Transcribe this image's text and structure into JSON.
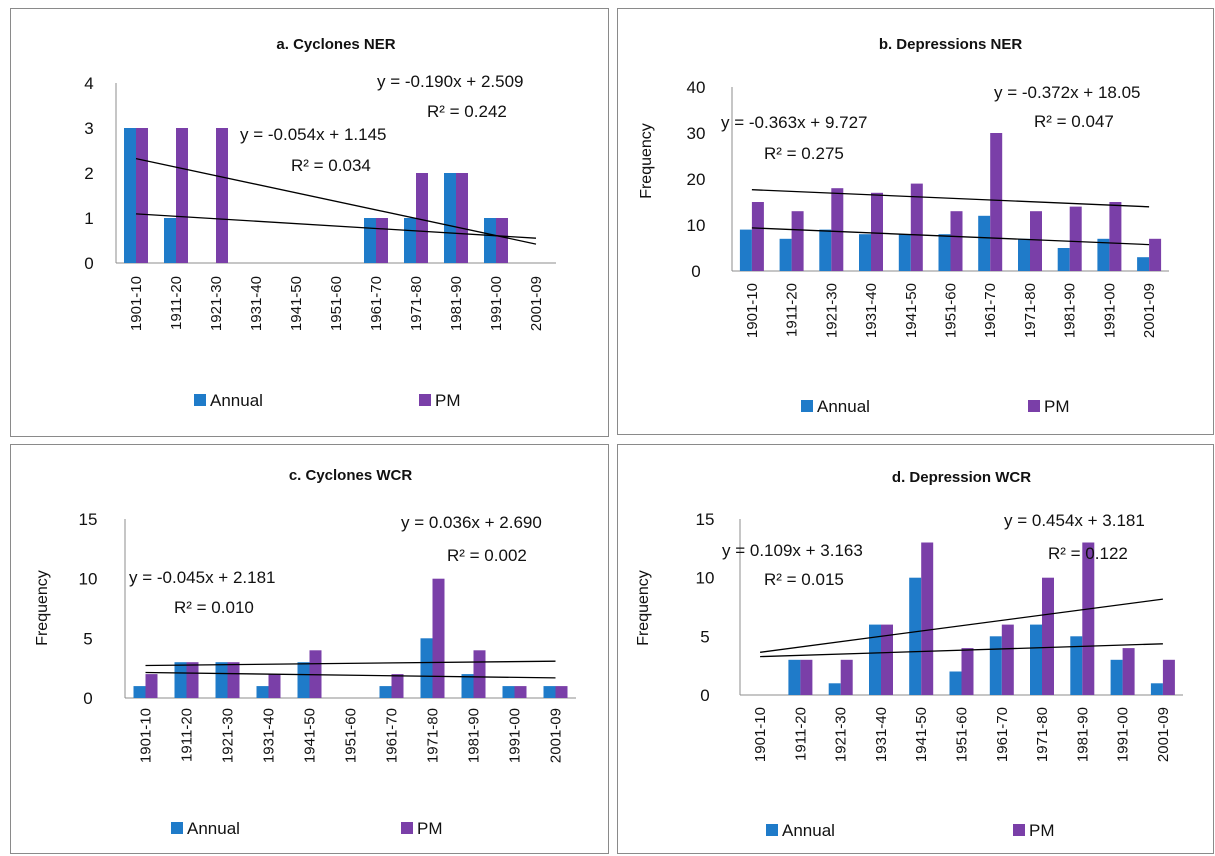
{
  "legend_labels": [
    "Annual",
    "PM"
  ],
  "colors": {
    "annual": "#1F7BC9",
    "pm": "#7A3FA8",
    "trend": "#000000",
    "axis": "#8c8c8c"
  },
  "chart_data": [
    {
      "type": "bar",
      "title": "a. Cyclones  NER",
      "xlabel": "",
      "ylabel": "",
      "ylim": [
        0,
        4
      ],
      "yticks": [
        "0",
        "1",
        "2",
        "3",
        "4"
      ],
      "categories": [
        "1901-10",
        "1911-20",
        "1921-30",
        "1931-40",
        "1941-50",
        "1951-60",
        "1961-70",
        "1971-80",
        "1981-90",
        "1991-00",
        "2001-09"
      ],
      "series": [
        {
          "name": "Annual",
          "values": [
            3,
            1,
            0,
            0,
            0,
            0,
            1,
            1,
            2,
            1,
            0
          ]
        },
        {
          "name": "PM",
          "values": [
            3,
            3,
            3,
            0,
            0,
            0,
            1,
            2,
            2,
            1,
            0
          ]
        }
      ],
      "trendlines": [
        {
          "series": "PM",
          "slope": -0.19,
          "intercept": 2.509,
          "equation": "y = -0.190x + 2.509",
          "r2": "R² = 0.242"
        },
        {
          "series": "Annual",
          "slope": -0.054,
          "intercept": 1.145,
          "equation": "y = -0.054x + 1.145",
          "r2": "R² = 0.034"
        }
      ],
      "legend": "bottom"
    },
    {
      "type": "bar",
      "title": "b. Depressions NER",
      "xlabel": "",
      "ylabel": "Frequency",
      "ylim": [
        0,
        40
      ],
      "yticks": [
        "0",
        "10",
        "20",
        "30",
        "40"
      ],
      "categories": [
        "1901-10",
        "1911-20",
        "1921-30",
        "1931-40",
        "1941-50",
        "1951-60",
        "1961-70",
        "1971-80",
        "1981-90",
        "1991-00",
        "2001-09"
      ],
      "series": [
        {
          "name": "Annual",
          "values": [
            9,
            7,
            9,
            8,
            8,
            8,
            12,
            7,
            5,
            7,
            3
          ]
        },
        {
          "name": "PM",
          "values": [
            15,
            13,
            18,
            17,
            19,
            13,
            30,
            13,
            14,
            15,
            7
          ]
        }
      ],
      "trendlines": [
        {
          "series": "Annual",
          "slope": -0.363,
          "intercept": 9.727,
          "equation": "y = -0.363x + 9.727",
          "r2": "R² = 0.275"
        },
        {
          "series": "PM",
          "slope": -0.372,
          "intercept": 18.05,
          "equation": "y = -0.372x + 18.05",
          "r2": "R² = 0.047"
        }
      ],
      "legend": "bottom"
    },
    {
      "type": "bar",
      "title": "c. Cyclones  WCR",
      "xlabel": "",
      "ylabel": "Frequency",
      "ylim": [
        0,
        15
      ],
      "yticks": [
        "0",
        "5",
        "10",
        "15"
      ],
      "categories": [
        "1901-10",
        "1911-20",
        "1921-30",
        "1931-40",
        "1941-50",
        "1951-60",
        "1961-70",
        "1971-80",
        "1981-90",
        "1991-00",
        "2001-09"
      ],
      "series": [
        {
          "name": "Annual",
          "values": [
            1,
            3,
            3,
            1,
            3,
            0,
            1,
            5,
            2,
            1,
            1
          ]
        },
        {
          "name": "PM",
          "values": [
            2,
            3,
            3,
            2,
            4,
            0,
            2,
            10,
            4,
            1,
            1
          ]
        }
      ],
      "trendlines": [
        {
          "series": "Annual",
          "slope": -0.045,
          "intercept": 2.181,
          "equation": "y = -0.045x + 2.181",
          "r2": "R² = 0.010"
        },
        {
          "series": "PM",
          "slope": 0.036,
          "intercept": 2.69,
          "equation": "y = 0.036x + 2.690",
          "r2": "R² = 0.002"
        }
      ],
      "legend": "bottom"
    },
    {
      "type": "bar",
      "title": "d. Depression  WCR",
      "xlabel": "",
      "ylabel": "Frequency",
      "ylim": [
        0,
        15
      ],
      "yticks": [
        "0",
        "5",
        "10",
        "15"
      ],
      "categories": [
        "1901-10",
        "1911-20",
        "1921-30",
        "1931-40",
        "1941-50",
        "1951-60",
        "1961-70",
        "1971-80",
        "1981-90",
        "1991-00",
        "2001-09"
      ],
      "series": [
        {
          "name": "Annual",
          "values": [
            0,
            3,
            1,
            6,
            10,
            2,
            5,
            6,
            5,
            3,
            1
          ]
        },
        {
          "name": "PM",
          "values": [
            0,
            3,
            3,
            6,
            13,
            4,
            6,
            10,
            13,
            4,
            3
          ]
        }
      ],
      "trendlines": [
        {
          "series": "Annual",
          "slope": 0.109,
          "intercept": 3.163,
          "equation": "y = 0.109x + 3.163",
          "r2": "R² = 0.015"
        },
        {
          "series": "PM",
          "slope": 0.454,
          "intercept": 3.181,
          "equation": "y = 0.454x + 3.181",
          "r2": "R² = 0.122"
        }
      ],
      "legend": "bottom"
    }
  ]
}
